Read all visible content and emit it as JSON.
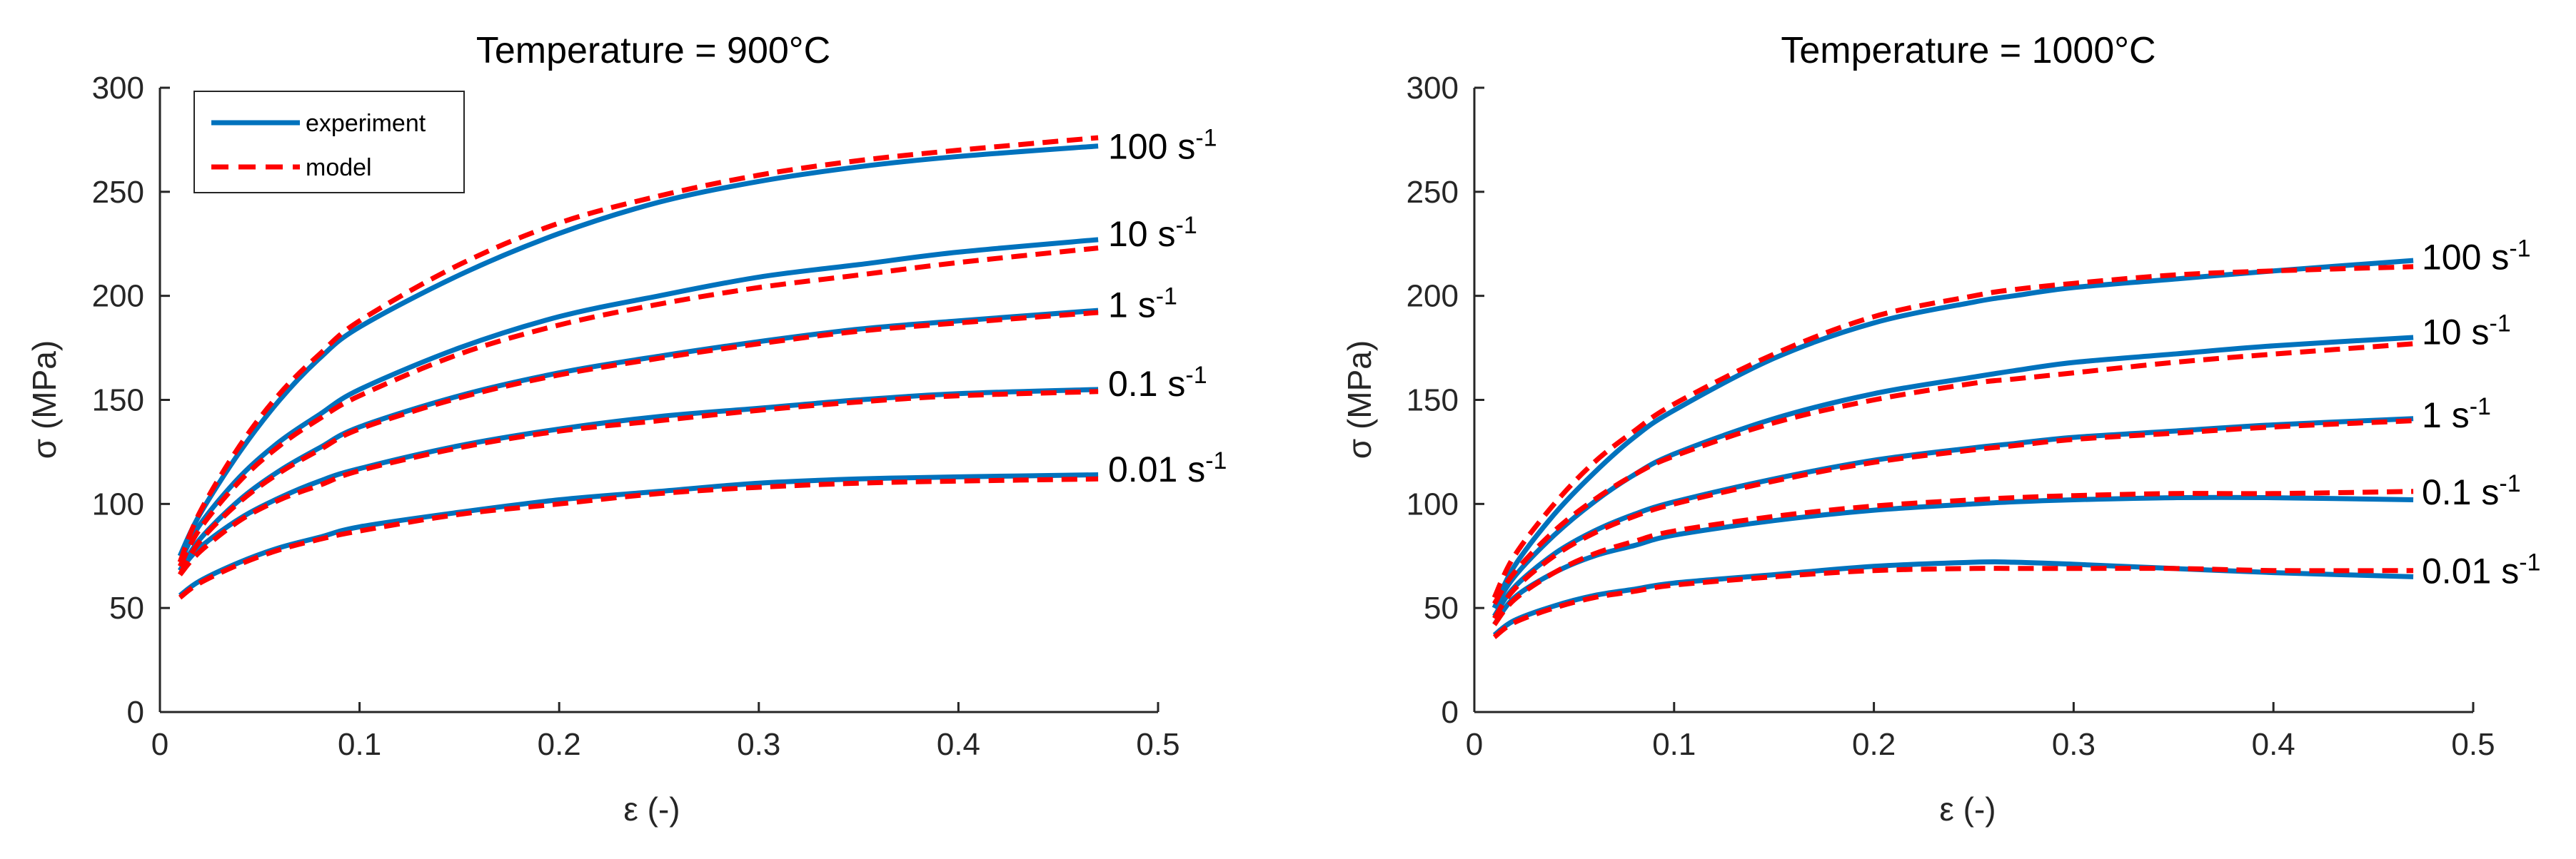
{
  "chart_data": [
    {
      "type": "line",
      "title": "Temperature = 900°C",
      "xlabel": "ε (-)",
      "ylabel": "σ (MPa)",
      "xlim": [
        0,
        0.5
      ],
      "ylim": [
        0,
        300
      ],
      "xticks": [
        "0",
        "0.1",
        "0.2",
        "0.3",
        "0.4",
        "0.5"
      ],
      "yticks": [
        "0",
        "50",
        "100",
        "150",
        "200",
        "250",
        "300"
      ],
      "legend": {
        "position": "top-left",
        "entries": [
          {
            "label": "experiment",
            "color": "#0072BD",
            "style": "solid"
          },
          {
            "label": "model",
            "color": "#FF0000",
            "style": "dashed"
          }
        ]
      },
      "x": [
        0.01,
        0.02,
        0.04,
        0.06,
        0.08,
        0.1,
        0.15,
        0.2,
        0.25,
        0.3,
        0.35,
        0.4,
        0.47
      ],
      "series": [
        {
          "rate": "100",
          "name": "experiment 100 s-1",
          "values": [
            75,
            95,
            125,
            150,
            170,
            185,
            210,
            230,
            245,
            255,
            262,
            267,
            272
          ]
        },
        {
          "rate": "100",
          "name": "model 100 s-1",
          "values": [
            72,
            96,
            128,
            153,
            172,
            188,
            215,
            235,
            248,
            258,
            265,
            270,
            276
          ]
        },
        {
          "rate": "10",
          "name": "experiment 10 s-1",
          "values": [
            72,
            90,
            113,
            130,
            143,
            155,
            175,
            190,
            200,
            209,
            215,
            221,
            227
          ]
        },
        {
          "rate": "10",
          "name": "model 10 s-1",
          "values": [
            70,
            88,
            111,
            128,
            141,
            152,
            172,
            186,
            196,
            204,
            210,
            216,
            223
          ]
        },
        {
          "rate": "1",
          "name": "experiment 1 s-1",
          "values": [
            68,
            83,
            102,
            116,
            127,
            137,
            152,
            163,
            171,
            178,
            184,
            188,
            193
          ]
        },
        {
          "rate": "1",
          "name": "model 1 s-1",
          "values": [
            66,
            82,
            101,
            115,
            126,
            136,
            151,
            162,
            170,
            177,
            183,
            187,
            192
          ]
        },
        {
          "rate": "0.1",
          "name": "experiment 0.1 s-1",
          "values": [
            68,
            79,
            93,
            103,
            111,
            117,
            128,
            136,
            142,
            146,
            150,
            153,
            155
          ]
        },
        {
          "rate": "0.1",
          "name": "model 0.1 s-1",
          "values": [
            66,
            77,
            92,
            102,
            109,
            116,
            127,
            135,
            140,
            145,
            149,
            152,
            154
          ]
        },
        {
          "rate": "0.01",
          "name": "experiment 0.01 s-1",
          "values": [
            56,
            63,
            72,
            79,
            84,
            89,
            96,
            102,
            106,
            110,
            112,
            113,
            114
          ]
        },
        {
          "rate": "0.01",
          "name": "model 0.01 s-1",
          "values": [
            55,
            62,
            71,
            78,
            83,
            87,
            95,
            100,
            105,
            108,
            110,
            111,
            112
          ]
        }
      ],
      "end_labels": [
        {
          "text": "100 s",
          "sup": "-1",
          "y": 272
        },
        {
          "text": "10 s",
          "sup": "-1",
          "y": 230
        },
        {
          "text": "1 s",
          "sup": "-1",
          "y": 196
        },
        {
          "text": "0.1 s",
          "sup": "-1",
          "y": 158
        },
        {
          "text": "0.01 s",
          "sup": "-1",
          "y": 117
        }
      ]
    },
    {
      "type": "line",
      "title": "Temperature = 1000°C",
      "xlabel": "ε (-)",
      "ylabel": "σ (MPa)",
      "xlim": [
        0,
        0.5
      ],
      "ylim": [
        0,
        300
      ],
      "xticks": [
        "0",
        "0.1",
        "0.2",
        "0.3",
        "0.4",
        "0.5"
      ],
      "yticks": [
        "0",
        "50",
        "100",
        "150",
        "200",
        "250",
        "300"
      ],
      "x": [
        0.01,
        0.02,
        0.04,
        0.06,
        0.08,
        0.1,
        0.15,
        0.2,
        0.25,
        0.27,
        0.3,
        0.35,
        0.4,
        0.47
      ],
      "series": [
        {
          "rate": "100",
          "name": "experiment 100 s-1",
          "values": [
            50,
            70,
            95,
            115,
            132,
            145,
            170,
            187,
            197,
            200,
            204,
            208,
            212,
            217
          ]
        },
        {
          "rate": "100",
          "name": "model 100 s-1",
          "values": [
            55,
            75,
            100,
            120,
            135,
            148,
            172,
            190,
            200,
            203,
            206,
            210,
            212,
            214
          ]
        },
        {
          "rate": "10",
          "name": "experiment 10 s-1",
          "values": [
            50,
            65,
            85,
            101,
            114,
            124,
            141,
            153,
            161,
            164,
            168,
            172,
            176,
            180
          ]
        },
        {
          "rate": "10",
          "name": "model 10 s-1",
          "values": [
            52,
            67,
            87,
            102,
            114,
            123,
            139,
            150,
            158,
            160,
            163,
            168,
            172,
            177
          ]
        },
        {
          "rate": "1",
          "name": "experiment 1 s-1",
          "values": [
            46,
            60,
            76,
            87,
            95,
            101,
            112,
            121,
            127,
            129,
            132,
            135,
            138,
            141
          ]
        },
        {
          "rate": "1",
          "name": "model 1 s-1",
          "values": [
            45,
            59,
            75,
            86,
            94,
            100,
            111,
            120,
            126,
            128,
            131,
            134,
            137,
            140
          ]
        },
        {
          "rate": "0.1",
          "name": "experiment 0.1 s-1",
          "values": [
            42,
            55,
            67,
            75,
            80,
            85,
            92,
            97,
            100,
            101,
            102,
            103,
            103,
            102
          ]
        },
        {
          "rate": "0.1",
          "name": "model 0.1 s-1",
          "values": [
            42,
            54,
            67,
            76,
            82,
            87,
            94,
            99,
            102,
            103,
            104,
            105,
            105,
            106
          ]
        },
        {
          "rate": "0.01",
          "name": "experiment 0.01 s-1",
          "values": [
            37,
            44,
            51,
            56,
            59,
            62,
            66,
            70,
            72,
            72,
            71,
            69,
            67,
            65
          ]
        },
        {
          "rate": "0.01",
          "name": "model 0.01 s-1",
          "values": [
            36,
            43,
            50,
            55,
            58,
            61,
            65,
            68,
            69,
            69,
            69,
            69,
            68,
            68
          ]
        }
      ],
      "end_labels": [
        {
          "text": "100 s",
          "sup": "-1",
          "y": 219
        },
        {
          "text": "10 s",
          "sup": "-1",
          "y": 183
        },
        {
          "text": "1 s",
          "sup": "-1",
          "y": 143
        },
        {
          "text": "0.1 s",
          "sup": "-1",
          "y": 106
        },
        {
          "text": "0.01 s",
          "sup": "-1",
          "y": 68
        }
      ]
    }
  ]
}
